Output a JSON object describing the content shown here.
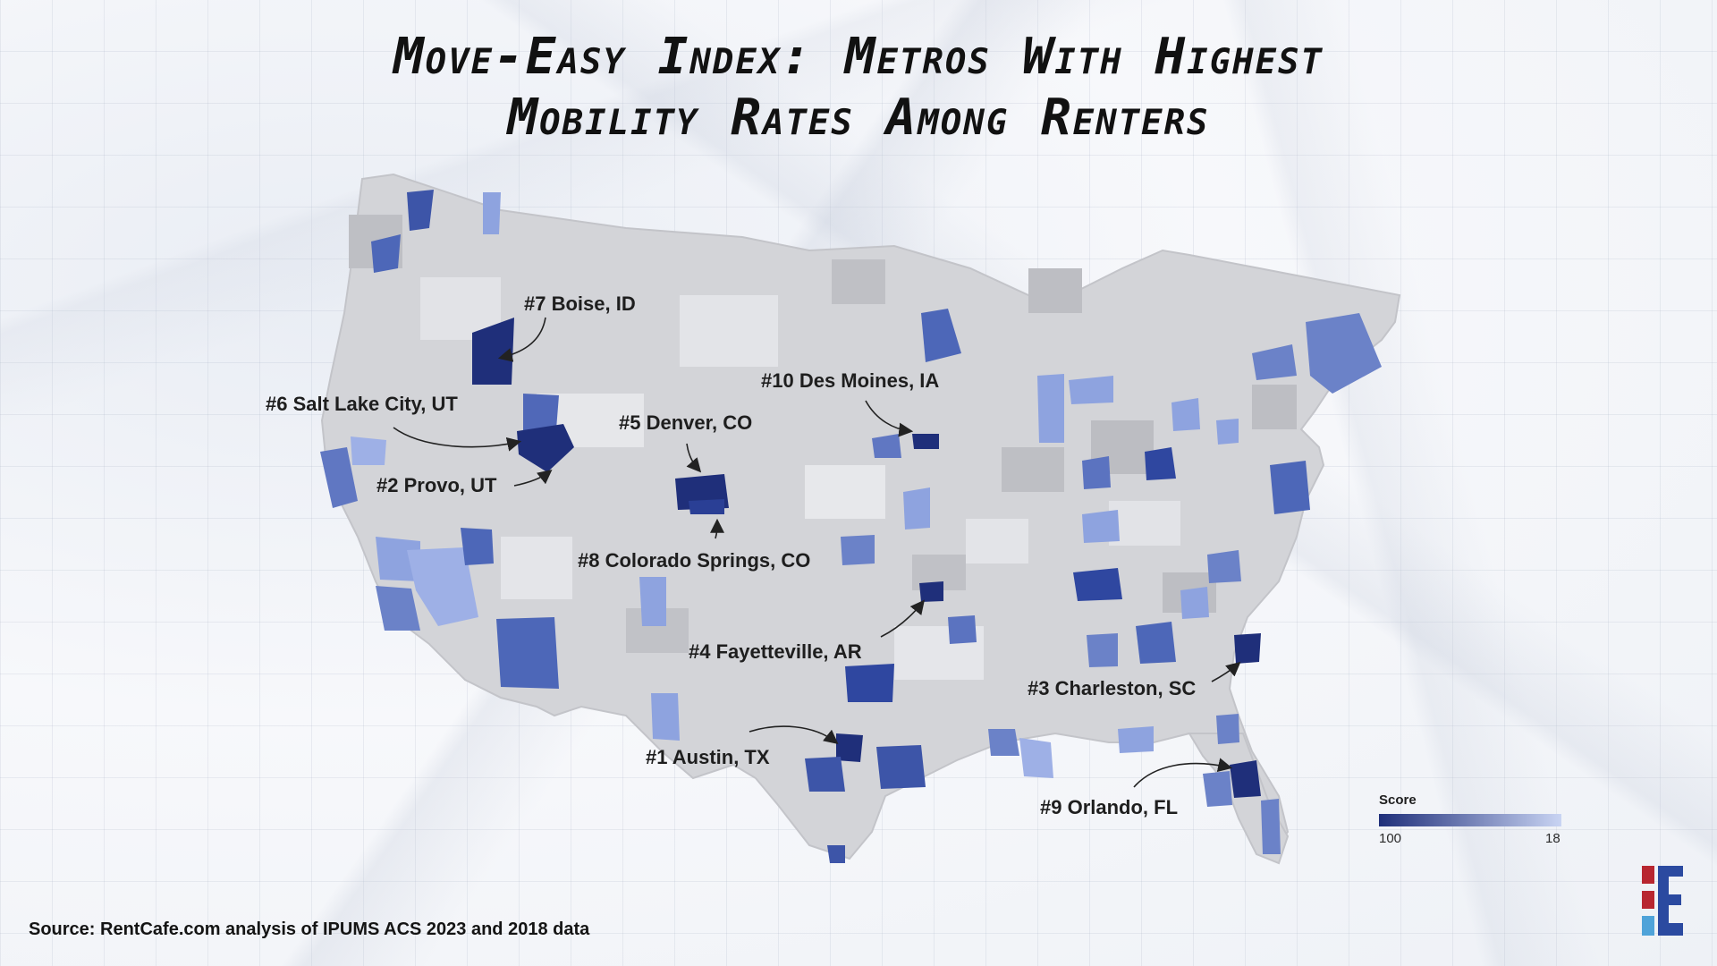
{
  "title_lines": [
    "Move-Easy Index: Metros With Highest",
    "Mobility Rates Among Renters"
  ],
  "source": "Source: RentCafe.com analysis of IPUMS ACS 2023 and 2018 data",
  "legend": {
    "title": "Score",
    "min_label": "100",
    "max_label": "18",
    "color_high": "#1f2f7a",
    "color_low": "#c9d4f3"
  },
  "colors": {
    "land": "#cfd0d4",
    "county_light": "#e3e4e8",
    "county_dark": "#b9babf",
    "metro_dark": "#263a8c",
    "metro_mid": "#4d67b8",
    "metro_light": "#8ea3df",
    "brand_red": "#b82630",
    "brand_blue": "#2b4aa0"
  },
  "ranked_metros": [
    {
      "label": "#1 Austin, TX"
    },
    {
      "label": "#2 Provo, UT"
    },
    {
      "label": "#3 Charleston, SC"
    },
    {
      "label": "#4 Fayetteville, AR"
    },
    {
      "label": "#5 Denver, CO"
    },
    {
      "label": "#6 Salt Lake City, UT"
    },
    {
      "label": "#7 Boise, ID"
    },
    {
      "label": "#8 Colorado Springs, CO"
    },
    {
      "label": "#9 Orlando, FL"
    },
    {
      "label": "#10 Des Moines, IA"
    }
  ]
}
